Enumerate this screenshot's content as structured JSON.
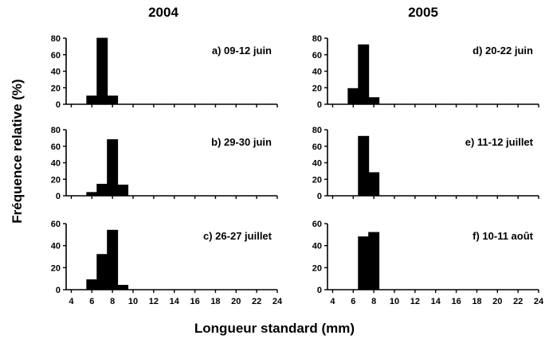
{
  "figure": {
    "column_titles": [
      "2004",
      "2005"
    ],
    "ylabel": "Fréquence relative (%)",
    "xlabel": "Longueur standard (mm)"
  },
  "chart_data": [
    {
      "type": "bar",
      "year": "2004",
      "label": "a) 09-12 juin",
      "x": [
        6,
        7,
        8,
        9
      ],
      "values": [
        10,
        80,
        10,
        0
      ],
      "bar_width": 1,
      "xlim": [
        3.5,
        24
      ],
      "ylim": [
        0,
        80
      ],
      "yticks": [
        0,
        20,
        40,
        60,
        80
      ],
      "xticks": [
        4,
        6,
        8,
        10,
        12,
        14,
        16,
        18,
        20,
        22,
        24
      ],
      "show_xticklabels": false
    },
    {
      "type": "bar",
      "year": "2004",
      "label": "b) 29-30 juin",
      "x": [
        6,
        7,
        8,
        9
      ],
      "values": [
        4,
        14,
        68,
        13
      ],
      "bar_width": 1,
      "xlim": [
        3.5,
        24
      ],
      "ylim": [
        0,
        80
      ],
      "yticks": [
        0,
        20,
        40,
        60,
        80
      ],
      "xticks": [
        4,
        6,
        8,
        10,
        12,
        14,
        16,
        18,
        20,
        22,
        24
      ],
      "show_xticklabels": false
    },
    {
      "type": "bar",
      "year": "2004",
      "label": "c) 26-27 juillet",
      "x": [
        6,
        7,
        8,
        9
      ],
      "values": [
        9,
        32,
        54,
        4
      ],
      "bar_width": 1,
      "xlim": [
        3.5,
        24
      ],
      "ylim": [
        0,
        60
      ],
      "yticks": [
        0,
        20,
        40,
        60
      ],
      "xticks": [
        4,
        6,
        8,
        10,
        12,
        14,
        16,
        18,
        20,
        22,
        24
      ],
      "show_xticklabels": true
    },
    {
      "type": "bar",
      "year": "2005",
      "label": "d) 20-22 juin",
      "x": [
        6,
        7,
        8
      ],
      "values": [
        19,
        72,
        8
      ],
      "bar_width": 1,
      "xlim": [
        3.5,
        24
      ],
      "ylim": [
        0,
        80
      ],
      "yticks": [
        0,
        20,
        40,
        60,
        80
      ],
      "xticks": [
        4,
        6,
        8,
        10,
        12,
        14,
        16,
        18,
        20,
        22,
        24
      ],
      "show_xticklabels": false
    },
    {
      "type": "bar",
      "year": "2005",
      "label": "e) 11-12 juillet",
      "x": [
        7,
        8
      ],
      "values": [
        72,
        28
      ],
      "bar_width": 1,
      "xlim": [
        3.5,
        24
      ],
      "ylim": [
        0,
        80
      ],
      "yticks": [
        0,
        20,
        40,
        60,
        80
      ],
      "xticks": [
        4,
        6,
        8,
        10,
        12,
        14,
        16,
        18,
        20,
        22,
        24
      ],
      "show_xticklabels": false
    },
    {
      "type": "bar",
      "year": "2005",
      "label": "f) 10-11 août",
      "x": [
        7,
        8
      ],
      "values": [
        48,
        52
      ],
      "bar_width": 1,
      "xlim": [
        3.5,
        24
      ],
      "ylim": [
        0,
        60
      ],
      "yticks": [
        0,
        20,
        40,
        60
      ],
      "xticks": [
        4,
        6,
        8,
        10,
        12,
        14,
        16,
        18,
        20,
        22,
        24
      ],
      "show_xticklabels": true
    }
  ]
}
